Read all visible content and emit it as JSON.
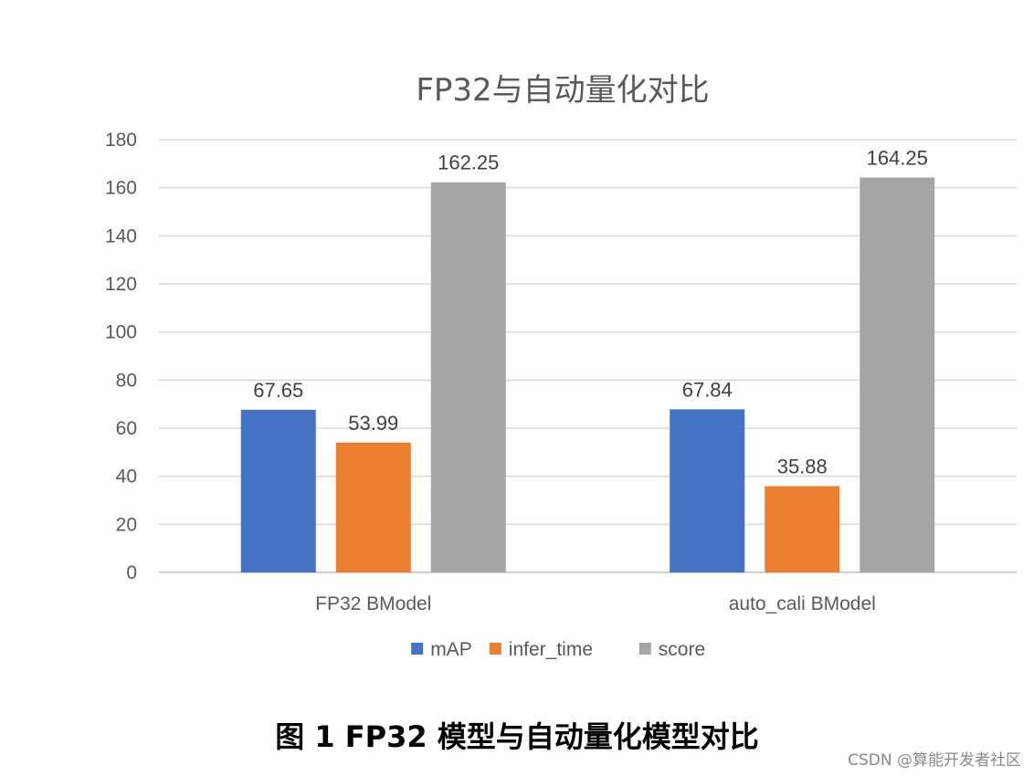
{
  "chart_data": {
    "type": "bar",
    "title": "FP32与自动量化对比",
    "categories": [
      "FP32 BModel",
      "auto_cali BModel"
    ],
    "series": [
      {
        "name": "mAP",
        "values": [
          67.65,
          67.84
        ],
        "value_labels": [
          "67.65",
          "67.84"
        ],
        "color": "#4472c4"
      },
      {
        "name": "infer_time",
        "values": [
          53.99,
          35.88
        ],
        "value_labels": [
          "53.99",
          "35.88"
        ],
        "color": "#ed7d31"
      },
      {
        "name": "score",
        "values": [
          162.25,
          164.25
        ],
        "value_labels": [
          "162.25",
          "164.25"
        ],
        "color": "#a5a5a5"
      }
    ],
    "yticks": [
      "0",
      "20",
      "40",
      "60",
      "80",
      "100",
      "120",
      "140",
      "160",
      "180"
    ],
    "ylim": [
      0,
      180
    ],
    "grid": true,
    "legend": "bottom",
    "xlabel": "",
    "ylabel": ""
  },
  "caption": "图 1 FP32 模型与自动量化模型对比",
  "watermark": "CSDN @算能开发者社区"
}
